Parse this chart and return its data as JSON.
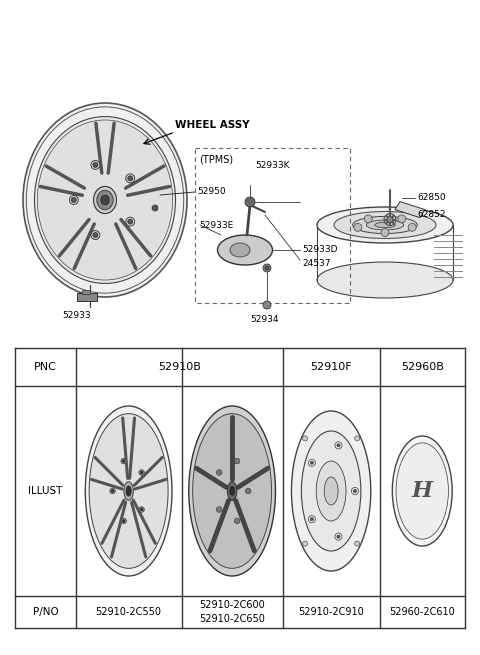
{
  "bg_color": "#ffffff",
  "text_color": "#000000",
  "upper_section": {
    "wheel_assy_label": "WHEEL ASSY",
    "tpms_label": "(TPMS)",
    "parts": [
      {
        "id": "52950"
      },
      {
        "id": "52933"
      },
      {
        "id": "52933K"
      },
      {
        "id": "52933E"
      },
      {
        "id": "52933D"
      },
      {
        "id": "24537"
      },
      {
        "id": "52934"
      },
      {
        "id": "62850"
      },
      {
        "id": "62852"
      }
    ]
  },
  "table": {
    "pnc_row": [
      "PNC",
      "52910B",
      "52910F",
      "52960B"
    ],
    "illust_row": "ILLUST",
    "pno_row": [
      "P/NO",
      "52910-2C550",
      "52910-2C600\n52910-2C650",
      "52910-2C910",
      "52960-2C610"
    ]
  }
}
